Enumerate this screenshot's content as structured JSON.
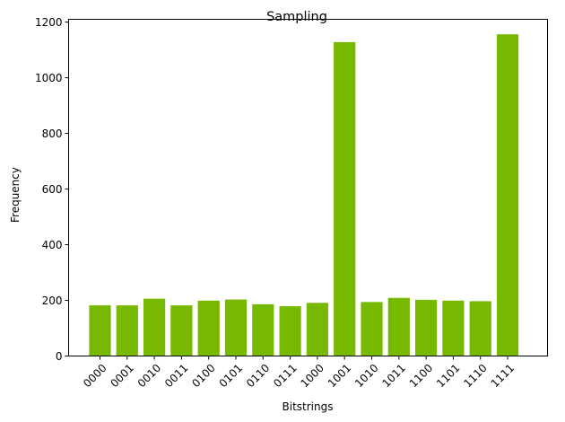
{
  "chart_data": {
    "type": "bar",
    "title": "Sampling",
    "xlabel": "Bitstrings",
    "ylabel": "Frequency",
    "categories": [
      "0000",
      "0001",
      "0010",
      "0011",
      "0100",
      "0101",
      "0110",
      "0111",
      "1000",
      "1001",
      "1010",
      "1011",
      "1100",
      "1101",
      "1110",
      "1111"
    ],
    "values": [
      182,
      182,
      206,
      182,
      199,
      203,
      186,
      179,
      191,
      1128,
      194,
      209,
      202,
      199,
      197,
      1156
    ],
    "ylim": [
      0,
      1210
    ],
    "yticks": [
      0,
      200,
      400,
      600,
      800,
      1000,
      1200
    ],
    "bar_color": "#76b900",
    "grid": false,
    "legend": false
  }
}
